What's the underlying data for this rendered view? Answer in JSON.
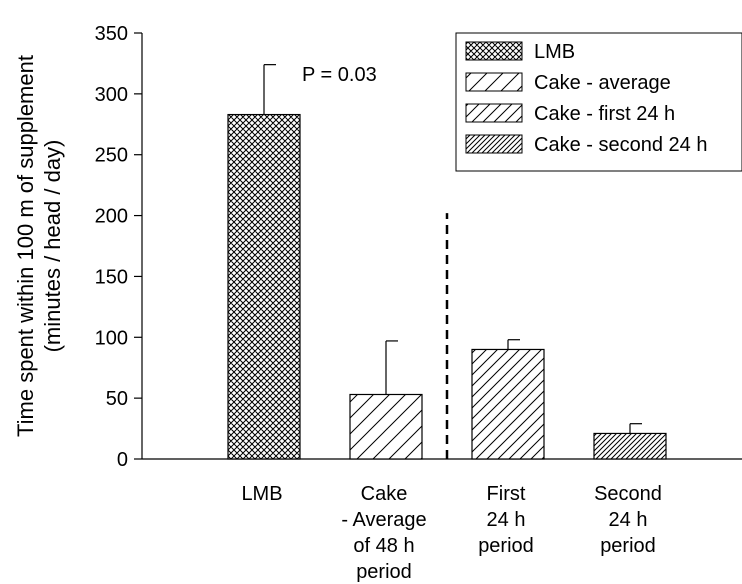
{
  "chart_data": {
    "type": "bar",
    "title": "",
    "ylabel_lines": [
      "Time spent within 100 m of supplement",
      "(minutes / head / day)"
    ],
    "ylim": [
      0,
      350
    ],
    "yticks": [
      0,
      50,
      100,
      150,
      200,
      250,
      300,
      350
    ],
    "grid": false,
    "legend_position": "top-right",
    "categories": [
      {
        "lines": [
          "LMB"
        ]
      },
      {
        "lines": [
          "Cake",
          "- Average",
          "of 48 h",
          "period"
        ]
      },
      {
        "lines": [
          "First",
          "24 h",
          "period"
        ]
      },
      {
        "lines": [
          "Second",
          "24 h",
          "period"
        ]
      }
    ],
    "series": [
      {
        "name": "LMB",
        "pattern": "crosshatch",
        "values": [
          283,
          null,
          null,
          null
        ],
        "error": [
          41,
          null,
          null,
          null
        ]
      },
      {
        "name": "Cake - average",
        "pattern": "diag-wide",
        "values": [
          null,
          53,
          null,
          null
        ],
        "error": [
          null,
          44,
          null,
          null
        ]
      },
      {
        "name": "Cake - first 24 h",
        "pattern": "diag-medium",
        "values": [
          null,
          null,
          90,
          null
        ],
        "error": [
          null,
          null,
          8,
          null
        ]
      },
      {
        "name": "Cake - second 24 h",
        "pattern": "diag-dense",
        "values": [
          null,
          null,
          null,
          21
        ],
        "error": [
          null,
          null,
          null,
          8
        ]
      }
    ],
    "annotation": "P = 0.03",
    "separator_after_category": 1,
    "separator_top_value": 202
  }
}
